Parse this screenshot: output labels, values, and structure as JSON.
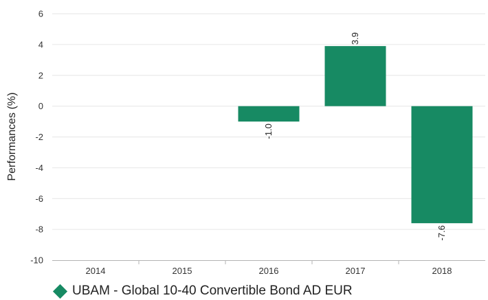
{
  "chart_data": {
    "type": "bar",
    "categories": [
      "2014",
      "2015",
      "2016",
      "2017",
      "2018"
    ],
    "series": [
      {
        "name": "UBAM - Global 10-40 Convertible Bond AD EUR",
        "values": [
          null,
          null,
          -1.0,
          3.9,
          -7.6
        ],
        "labels": [
          "",
          "",
          "-1.0",
          "3.9",
          "-7.6"
        ]
      }
    ],
    "ylabel": "Performances (%)",
    "xlabel": "",
    "ylim": [
      -10,
      6
    ],
    "yticks": [
      6,
      4,
      2,
      0,
      -2,
      -4,
      -6,
      -8,
      -10
    ],
    "grid": true,
    "legend": "bottom-left",
    "colors": {
      "bar": "#178a63",
      "grid": "#e6e6e6",
      "axis": "#b3b3b3"
    }
  }
}
